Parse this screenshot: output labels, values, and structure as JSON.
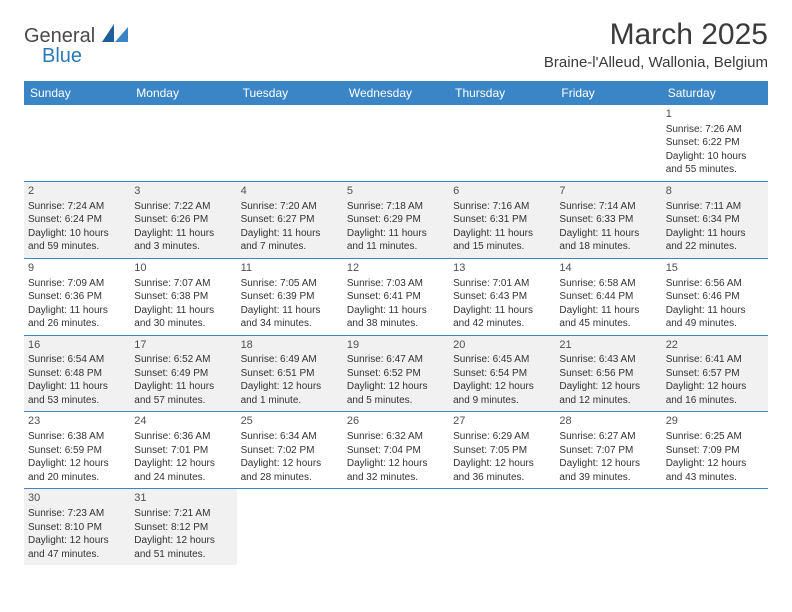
{
  "logo": {
    "general": "General",
    "blue": "Blue",
    "shape_color": "#2a7ab8",
    "text_color": "#4a4a4a"
  },
  "header": {
    "month_title": "March 2025",
    "location": "Braine-l'Alleud, Wallonia, Belgium"
  },
  "colors": {
    "header_bg": "#3a85c6",
    "header_text": "#ffffff",
    "row_border": "#3a85c6",
    "alt_row_bg": "#f1f1f1"
  },
  "fonts": {
    "title_size_pt": 30,
    "location_size_pt": 15,
    "dayhead_size_pt": 12,
    "cell_size_pt": 10
  },
  "day_headers": [
    "Sunday",
    "Monday",
    "Tuesday",
    "Wednesday",
    "Thursday",
    "Friday",
    "Saturday"
  ],
  "weeks": [
    [
      null,
      null,
      null,
      null,
      null,
      null,
      {
        "n": "1",
        "sr": "Sunrise: 7:26 AM",
        "ss": "Sunset: 6:22 PM",
        "dl1": "Daylight: 10 hours",
        "dl2": "and 55 minutes."
      }
    ],
    [
      {
        "n": "2",
        "sr": "Sunrise: 7:24 AM",
        "ss": "Sunset: 6:24 PM",
        "dl1": "Daylight: 10 hours",
        "dl2": "and 59 minutes."
      },
      {
        "n": "3",
        "sr": "Sunrise: 7:22 AM",
        "ss": "Sunset: 6:26 PM",
        "dl1": "Daylight: 11 hours",
        "dl2": "and 3 minutes."
      },
      {
        "n": "4",
        "sr": "Sunrise: 7:20 AM",
        "ss": "Sunset: 6:27 PM",
        "dl1": "Daylight: 11 hours",
        "dl2": "and 7 minutes."
      },
      {
        "n": "5",
        "sr": "Sunrise: 7:18 AM",
        "ss": "Sunset: 6:29 PM",
        "dl1": "Daylight: 11 hours",
        "dl2": "and 11 minutes."
      },
      {
        "n": "6",
        "sr": "Sunrise: 7:16 AM",
        "ss": "Sunset: 6:31 PM",
        "dl1": "Daylight: 11 hours",
        "dl2": "and 15 minutes."
      },
      {
        "n": "7",
        "sr": "Sunrise: 7:14 AM",
        "ss": "Sunset: 6:33 PM",
        "dl1": "Daylight: 11 hours",
        "dl2": "and 18 minutes."
      },
      {
        "n": "8",
        "sr": "Sunrise: 7:11 AM",
        "ss": "Sunset: 6:34 PM",
        "dl1": "Daylight: 11 hours",
        "dl2": "and 22 minutes."
      }
    ],
    [
      {
        "n": "9",
        "sr": "Sunrise: 7:09 AM",
        "ss": "Sunset: 6:36 PM",
        "dl1": "Daylight: 11 hours",
        "dl2": "and 26 minutes."
      },
      {
        "n": "10",
        "sr": "Sunrise: 7:07 AM",
        "ss": "Sunset: 6:38 PM",
        "dl1": "Daylight: 11 hours",
        "dl2": "and 30 minutes."
      },
      {
        "n": "11",
        "sr": "Sunrise: 7:05 AM",
        "ss": "Sunset: 6:39 PM",
        "dl1": "Daylight: 11 hours",
        "dl2": "and 34 minutes."
      },
      {
        "n": "12",
        "sr": "Sunrise: 7:03 AM",
        "ss": "Sunset: 6:41 PM",
        "dl1": "Daylight: 11 hours",
        "dl2": "and 38 minutes."
      },
      {
        "n": "13",
        "sr": "Sunrise: 7:01 AM",
        "ss": "Sunset: 6:43 PM",
        "dl1": "Daylight: 11 hours",
        "dl2": "and 42 minutes."
      },
      {
        "n": "14",
        "sr": "Sunrise: 6:58 AM",
        "ss": "Sunset: 6:44 PM",
        "dl1": "Daylight: 11 hours",
        "dl2": "and 45 minutes."
      },
      {
        "n": "15",
        "sr": "Sunrise: 6:56 AM",
        "ss": "Sunset: 6:46 PM",
        "dl1": "Daylight: 11 hours",
        "dl2": "and 49 minutes."
      }
    ],
    [
      {
        "n": "16",
        "sr": "Sunrise: 6:54 AM",
        "ss": "Sunset: 6:48 PM",
        "dl1": "Daylight: 11 hours",
        "dl2": "and 53 minutes."
      },
      {
        "n": "17",
        "sr": "Sunrise: 6:52 AM",
        "ss": "Sunset: 6:49 PM",
        "dl1": "Daylight: 11 hours",
        "dl2": "and 57 minutes."
      },
      {
        "n": "18",
        "sr": "Sunrise: 6:49 AM",
        "ss": "Sunset: 6:51 PM",
        "dl1": "Daylight: 12 hours",
        "dl2": "and 1 minute."
      },
      {
        "n": "19",
        "sr": "Sunrise: 6:47 AM",
        "ss": "Sunset: 6:52 PM",
        "dl1": "Daylight: 12 hours",
        "dl2": "and 5 minutes."
      },
      {
        "n": "20",
        "sr": "Sunrise: 6:45 AM",
        "ss": "Sunset: 6:54 PM",
        "dl1": "Daylight: 12 hours",
        "dl2": "and 9 minutes."
      },
      {
        "n": "21",
        "sr": "Sunrise: 6:43 AM",
        "ss": "Sunset: 6:56 PM",
        "dl1": "Daylight: 12 hours",
        "dl2": "and 12 minutes."
      },
      {
        "n": "22",
        "sr": "Sunrise: 6:41 AM",
        "ss": "Sunset: 6:57 PM",
        "dl1": "Daylight: 12 hours",
        "dl2": "and 16 minutes."
      }
    ],
    [
      {
        "n": "23",
        "sr": "Sunrise: 6:38 AM",
        "ss": "Sunset: 6:59 PM",
        "dl1": "Daylight: 12 hours",
        "dl2": "and 20 minutes."
      },
      {
        "n": "24",
        "sr": "Sunrise: 6:36 AM",
        "ss": "Sunset: 7:01 PM",
        "dl1": "Daylight: 12 hours",
        "dl2": "and 24 minutes."
      },
      {
        "n": "25",
        "sr": "Sunrise: 6:34 AM",
        "ss": "Sunset: 7:02 PM",
        "dl1": "Daylight: 12 hours",
        "dl2": "and 28 minutes."
      },
      {
        "n": "26",
        "sr": "Sunrise: 6:32 AM",
        "ss": "Sunset: 7:04 PM",
        "dl1": "Daylight: 12 hours",
        "dl2": "and 32 minutes."
      },
      {
        "n": "27",
        "sr": "Sunrise: 6:29 AM",
        "ss": "Sunset: 7:05 PM",
        "dl1": "Daylight: 12 hours",
        "dl2": "and 36 minutes."
      },
      {
        "n": "28",
        "sr": "Sunrise: 6:27 AM",
        "ss": "Sunset: 7:07 PM",
        "dl1": "Daylight: 12 hours",
        "dl2": "and 39 minutes."
      },
      {
        "n": "29",
        "sr": "Sunrise: 6:25 AM",
        "ss": "Sunset: 7:09 PM",
        "dl1": "Daylight: 12 hours",
        "dl2": "and 43 minutes."
      }
    ],
    [
      {
        "n": "30",
        "sr": "Sunrise: 7:23 AM",
        "ss": "Sunset: 8:10 PM",
        "dl1": "Daylight: 12 hours",
        "dl2": "and 47 minutes."
      },
      {
        "n": "31",
        "sr": "Sunrise: 7:21 AM",
        "ss": "Sunset: 8:12 PM",
        "dl1": "Daylight: 12 hours",
        "dl2": "and 51 minutes."
      },
      null,
      null,
      null,
      null,
      null
    ]
  ]
}
